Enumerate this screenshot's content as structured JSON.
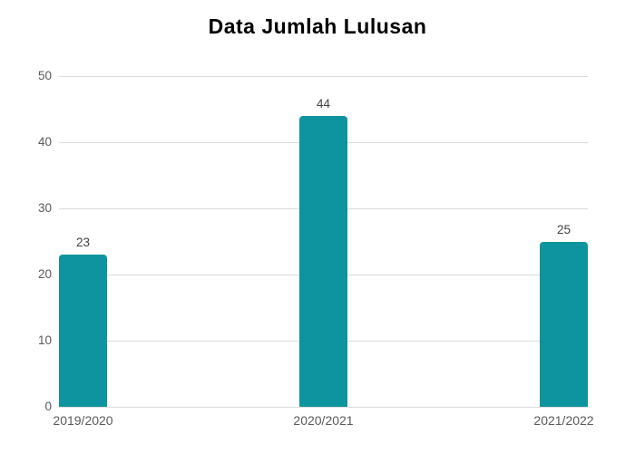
{
  "title": "Data Jumlah Lulusan",
  "colors": {
    "bar": "#0D949E",
    "gridline": "#DADADA",
    "tick_label": "#595959",
    "value_label": "#404040",
    "title": "#000000",
    "background": "#FFFFFF"
  },
  "chart_data": {
    "type": "bar",
    "categories": [
      "2019/2020",
      "2020/2021",
      "2021/2022"
    ],
    "values": [
      23,
      44,
      25
    ],
    "data_labels": [
      "23",
      "44",
      "25"
    ],
    "title": "Data Jumlah Lulusan",
    "xlabel": "",
    "ylabel": "",
    "ylim": [
      0,
      50
    ],
    "yticks": [
      0,
      10,
      20,
      30,
      40,
      50
    ],
    "grid": true,
    "legend": false
  }
}
